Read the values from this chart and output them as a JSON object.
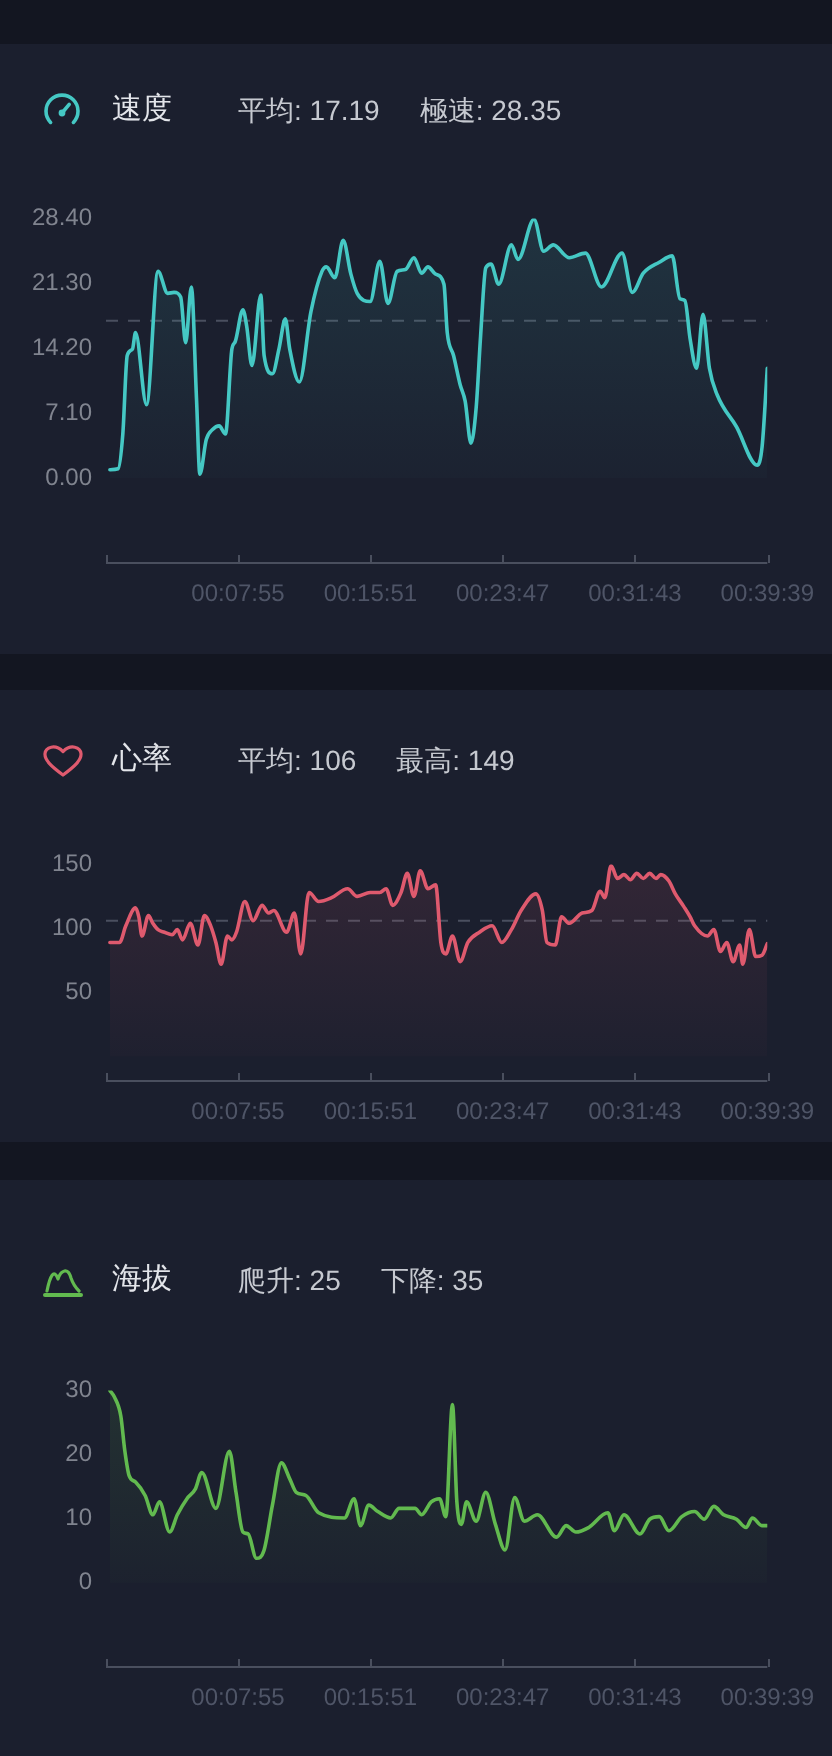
{
  "chart_data": [
    {
      "type": "area",
      "title": "速度",
      "annotations": [
        "平均: 17.19",
        "極速: 28.35"
      ],
      "x": [
        0.0039,
        0.0121,
        0.0168,
        0.0212,
        0.0264,
        0.0295,
        0.0405,
        0.052,
        0.0616,
        0.068,
        0.0746,
        0.0796,
        0.0853,
        0.0905,
        0.0938,
        0.1002,
        0.1065,
        0.1131,
        0.1194,
        0.1258,
        0.1291,
        0.1368,
        0.1406,
        0.1458,
        0.1547,
        0.158,
        0.1663,
        0.1728,
        0.1792,
        0.1836,
        0.1932,
        0.2048,
        0.2158,
        0.2202,
        0.2287,
        0.237,
        0.2447,
        0.251,
        0.2639,
        0.2736,
        0.2818,
        0.2909,
        0.2992,
        0.3077,
        0.3154,
        0.3217,
        0.3294,
        0.3377,
        0.341,
        0.3473,
        0.3539,
        0.3589,
        0.3647,
        0.3699,
        0.3743,
        0.3795,
        0.3847,
        0.3924,
        0.4051,
        0.4117,
        0.4277,
        0.4373,
        0.4469,
        0.4629,
        0.4791,
        0.4951,
        0.5157,
        0.5259,
        0.5369,
        0.5529,
        0.5658,
        0.5735,
        0.5785,
        0.5837,
        0.5901,
        0.5966,
        0.603,
        0.6107,
        0.63,
        0.6506,
        0.6556,
        0.6608
      ],
      "values": [
        0.9,
        1.0,
        4.8,
        13.4,
        14.1,
        15.9,
        8.0,
        22.6,
        20.2,
        20.3,
        19.8,
        14.8,
        20.9,
        8.5,
        0.4,
        4.2,
        5.3,
        5.7,
        4.8,
        14.1,
        14.9,
        18.4,
        16.6,
        12.3,
        20.0,
        13.4,
        11.4,
        14.1,
        17.4,
        14.1,
        10.5,
        18.2,
        22.6,
        23.1,
        21.9,
        26.0,
        22.3,
        20.2,
        19.3,
        23.7,
        19.1,
        22.6,
        22.8,
        24.1,
        22.4,
        23.1,
        22.3,
        21.2,
        15.9,
        13.4,
        10.2,
        8.4,
        3.8,
        7.7,
        15.5,
        23.0,
        23.4,
        21.2,
        25.5,
        23.9,
        28.3,
        24.8,
        25.5,
        24.1,
        24.6,
        20.9,
        24.6,
        20.3,
        22.4,
        23.6,
        24.3,
        19.6,
        19.4,
        15.2,
        12.0,
        17.9,
        12.0,
        9.1,
        5.6,
        1.4,
        3.4,
        12.0
      ],
      "color": "#45c8c4",
      "xlim": [
        0,
        0.6608
      ],
      "xticks": [
        {
          "value": 0,
          "label": null
        },
        {
          "value": 0.1319,
          "label": "00:07:55"
        },
        {
          "value": 0.2642,
          "label": "00:15:51"
        },
        {
          "value": 0.3964,
          "label": "00:23:47"
        },
        {
          "value": 0.5286,
          "label": "00:31:43"
        },
        {
          "value": 0.6608,
          "label": "00:39:39"
        }
      ],
      "ylim": [
        -9.2,
        28.4
      ],
      "yticks": [
        {
          "value": 0,
          "label": "0.00"
        },
        {
          "value": 7.1,
          "label": "7.10"
        },
        {
          "value": 14.2,
          "label": "14.20"
        },
        {
          "value": 21.3,
          "label": "21.30"
        },
        {
          "value": 28.4,
          "label": "28.40"
        }
      ],
      "ref_lines": [
        {
          "axis": "y",
          "value": 17.19,
          "color": "#4a4f5f",
          "line_style": "dashed"
        }
      ]
    },
    {
      "type": "area",
      "title": "心率",
      "annotations": [
        "平均: 106",
        "最高: 149"
      ],
      "x": [
        0.0039,
        0.0135,
        0.0198,
        0.0295,
        0.0328,
        0.036,
        0.0424,
        0.0468,
        0.052,
        0.0584,
        0.0661,
        0.0713,
        0.0765,
        0.0842,
        0.0919,
        0.0983,
        0.1046,
        0.1098,
        0.115,
        0.1214,
        0.1258,
        0.1304,
        0.1387,
        0.147,
        0.156,
        0.1624,
        0.1676,
        0.1805,
        0.1882,
        0.1946,
        0.2029,
        0.2125,
        0.2254,
        0.2414,
        0.251,
        0.2639,
        0.2736,
        0.2799,
        0.2865,
        0.2948,
        0.3011,
        0.3077,
        0.314,
        0.3217,
        0.3294,
        0.3346,
        0.3396,
        0.3462,
        0.3539,
        0.3616,
        0.3732,
        0.3859,
        0.3955,
        0.4051,
        0.4148,
        0.4296,
        0.436,
        0.4406,
        0.4489,
        0.4552,
        0.4629,
        0.4758,
        0.4855,
        0.4938,
        0.4984,
        0.5047,
        0.5111,
        0.5176,
        0.524,
        0.5304,
        0.5369,
        0.5433,
        0.5496,
        0.5543,
        0.5625,
        0.5689,
        0.5774,
        0.5837,
        0.5882,
        0.6011,
        0.6074,
        0.614,
        0.6203,
        0.6267,
        0.6332,
        0.6363,
        0.6429,
        0.6492,
        0.6556,
        0.6608
      ],
      "values": [
        89,
        89,
        102,
        116,
        109,
        94,
        110,
        104,
        99,
        97,
        95,
        99,
        91,
        104,
        87,
        110,
        102,
        89,
        72,
        94,
        91,
        97,
        121,
        106,
        118,
        112,
        114,
        97,
        112,
        80,
        128,
        121,
        124,
        131,
        125,
        128,
        128,
        131,
        118,
        128,
        143,
        125,
        145,
        131,
        134,
        89,
        80,
        94,
        74,
        89,
        97,
        102,
        89,
        99,
        114,
        127,
        114,
        89,
        87,
        109,
        104,
        112,
        114,
        129,
        124,
        149,
        139,
        142,
        138,
        143,
        139,
        143,
        139,
        142,
        137,
        127,
        117,
        109,
        102,
        94,
        99,
        82,
        89,
        74,
        87,
        72,
        99,
        78,
        79,
        88
      ],
      "color": "#df5a6e",
      "xlim": [
        0,
        0.6608
      ],
      "xticks": [
        {
          "value": 0,
          "label": null
        },
        {
          "value": 0.1319,
          "label": "00:07:55"
        },
        {
          "value": 0.2642,
          "label": "00:15:51"
        },
        {
          "value": 0.3964,
          "label": "00:23:47"
        },
        {
          "value": 0.5286,
          "label": "00:31:43"
        },
        {
          "value": 0.6608,
          "label": "00:39:39"
        }
      ],
      "ylim": [
        -18.5,
        150
      ],
      "yticks": [
        50,
        100,
        150
      ],
      "ref_lines": [
        {
          "axis": "y",
          "value": 106,
          "color": "#4a4f5f",
          "line_style": "dashed"
        }
      ]
    },
    {
      "type": "area",
      "title": "海拔",
      "annotations": [
        "爬升: 25",
        "下降: 35"
      ],
      "x": [
        0.0039,
        0.0083,
        0.0148,
        0.0187,
        0.0231,
        0.0295,
        0.0391,
        0.0468,
        0.0534,
        0.0636,
        0.0713,
        0.0809,
        0.0892,
        0.0957,
        0.1098,
        0.1233,
        0.1299,
        0.1368,
        0.142,
        0.1503,
        0.158,
        0.1663,
        0.1753,
        0.1836,
        0.1901,
        0.1998,
        0.2125,
        0.2383,
        0.2479,
        0.2543,
        0.2626,
        0.2716,
        0.2845,
        0.2928,
        0.3088,
        0.3154,
        0.325,
        0.3333,
        0.3396,
        0.3462,
        0.3506,
        0.3551,
        0.3603,
        0.3699,
        0.3795,
        0.3891,
        0.3988,
        0.4084,
        0.418,
        0.431,
        0.4502,
        0.4598,
        0.4695,
        0.4822,
        0.5015,
        0.508,
        0.5176,
        0.5336,
        0.5433,
        0.5529,
        0.5625,
        0.5754,
        0.5882,
        0.5978,
        0.6074,
        0.6171,
        0.63,
        0.6396,
        0.6459,
        0.6556,
        0.6608
      ],
      "values": [
        30.0,
        29.0,
        26.0,
        20.7,
        16.7,
        15.7,
        13.6,
        10.6,
        12.6,
        7.9,
        10.6,
        13.1,
        14.6,
        17.2,
        11.6,
        20.5,
        14.1,
        7.9,
        7.6,
        3.8,
        5.1,
        12.1,
        18.7,
        16.2,
        14.1,
        13.6,
        10.9,
        10.1,
        13.1,
        8.9,
        12.1,
        11.1,
        10.1,
        11.6,
        11.6,
        10.6,
        12.6,
        13.1,
        10.3,
        27.8,
        12.6,
        9.1,
        12.6,
        9.6,
        14.1,
        9.1,
        5.1,
        13.3,
        9.6,
        10.6,
        7.1,
        8.9,
        7.9,
        8.6,
        10.9,
        8.1,
        10.6,
        7.6,
        9.9,
        10.3,
        8.1,
        10.3,
        11.1,
        9.9,
        11.9,
        10.6,
        9.9,
        8.6,
        10.1,
        8.9,
        8.9
      ],
      "color": "#62ba4f",
      "xlim": [
        0,
        0.6608
      ],
      "xticks": [
        {
          "value": 0,
          "label": null
        },
        {
          "value": 0.1319,
          "label": "00:07:55"
        },
        {
          "value": 0.2642,
          "label": "00:15:51"
        },
        {
          "value": 0.3964,
          "label": "00:23:47"
        },
        {
          "value": 0.5286,
          "label": "00:31:43"
        },
        {
          "value": 0.6608,
          "label": "00:39:39"
        }
      ],
      "ylim": [
        -13,
        30
      ],
      "yticks": [
        0,
        10,
        20,
        30
      ]
    }
  ]
}
